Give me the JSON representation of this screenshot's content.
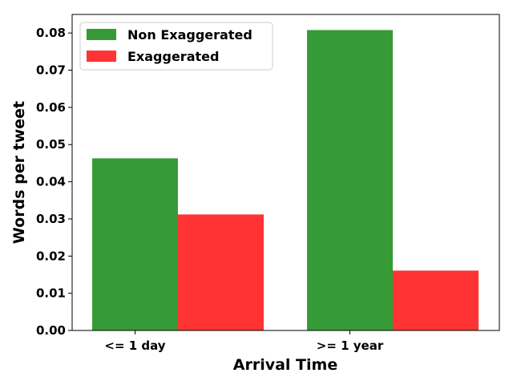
{
  "chart_data": {
    "type": "bar",
    "categories": [
      "<= 1 day",
      ">= 1 year"
    ],
    "series": [
      {
        "name": "Non Exaggerated",
        "values": [
          0.0463,
          0.0808
        ],
        "color": "#369b36"
      },
      {
        "name": "Exaggerated",
        "values": [
          0.0312,
          0.0161
        ],
        "color": "#ff3333"
      }
    ],
    "title": "",
    "xlabel": "Arrival Time",
    "ylabel": "Words per tweet",
    "ylim": [
      0,
      0.085
    ],
    "yticks": [
      0.0,
      0.01,
      0.02,
      0.03,
      0.04,
      0.05,
      0.06,
      0.07,
      0.08
    ],
    "ytick_labels": [
      "0.00",
      "0.01",
      "0.02",
      "0.03",
      "0.04",
      "0.05",
      "0.06",
      "0.07",
      "0.08"
    ],
    "grid": false,
    "legend_position": "top-left"
  }
}
